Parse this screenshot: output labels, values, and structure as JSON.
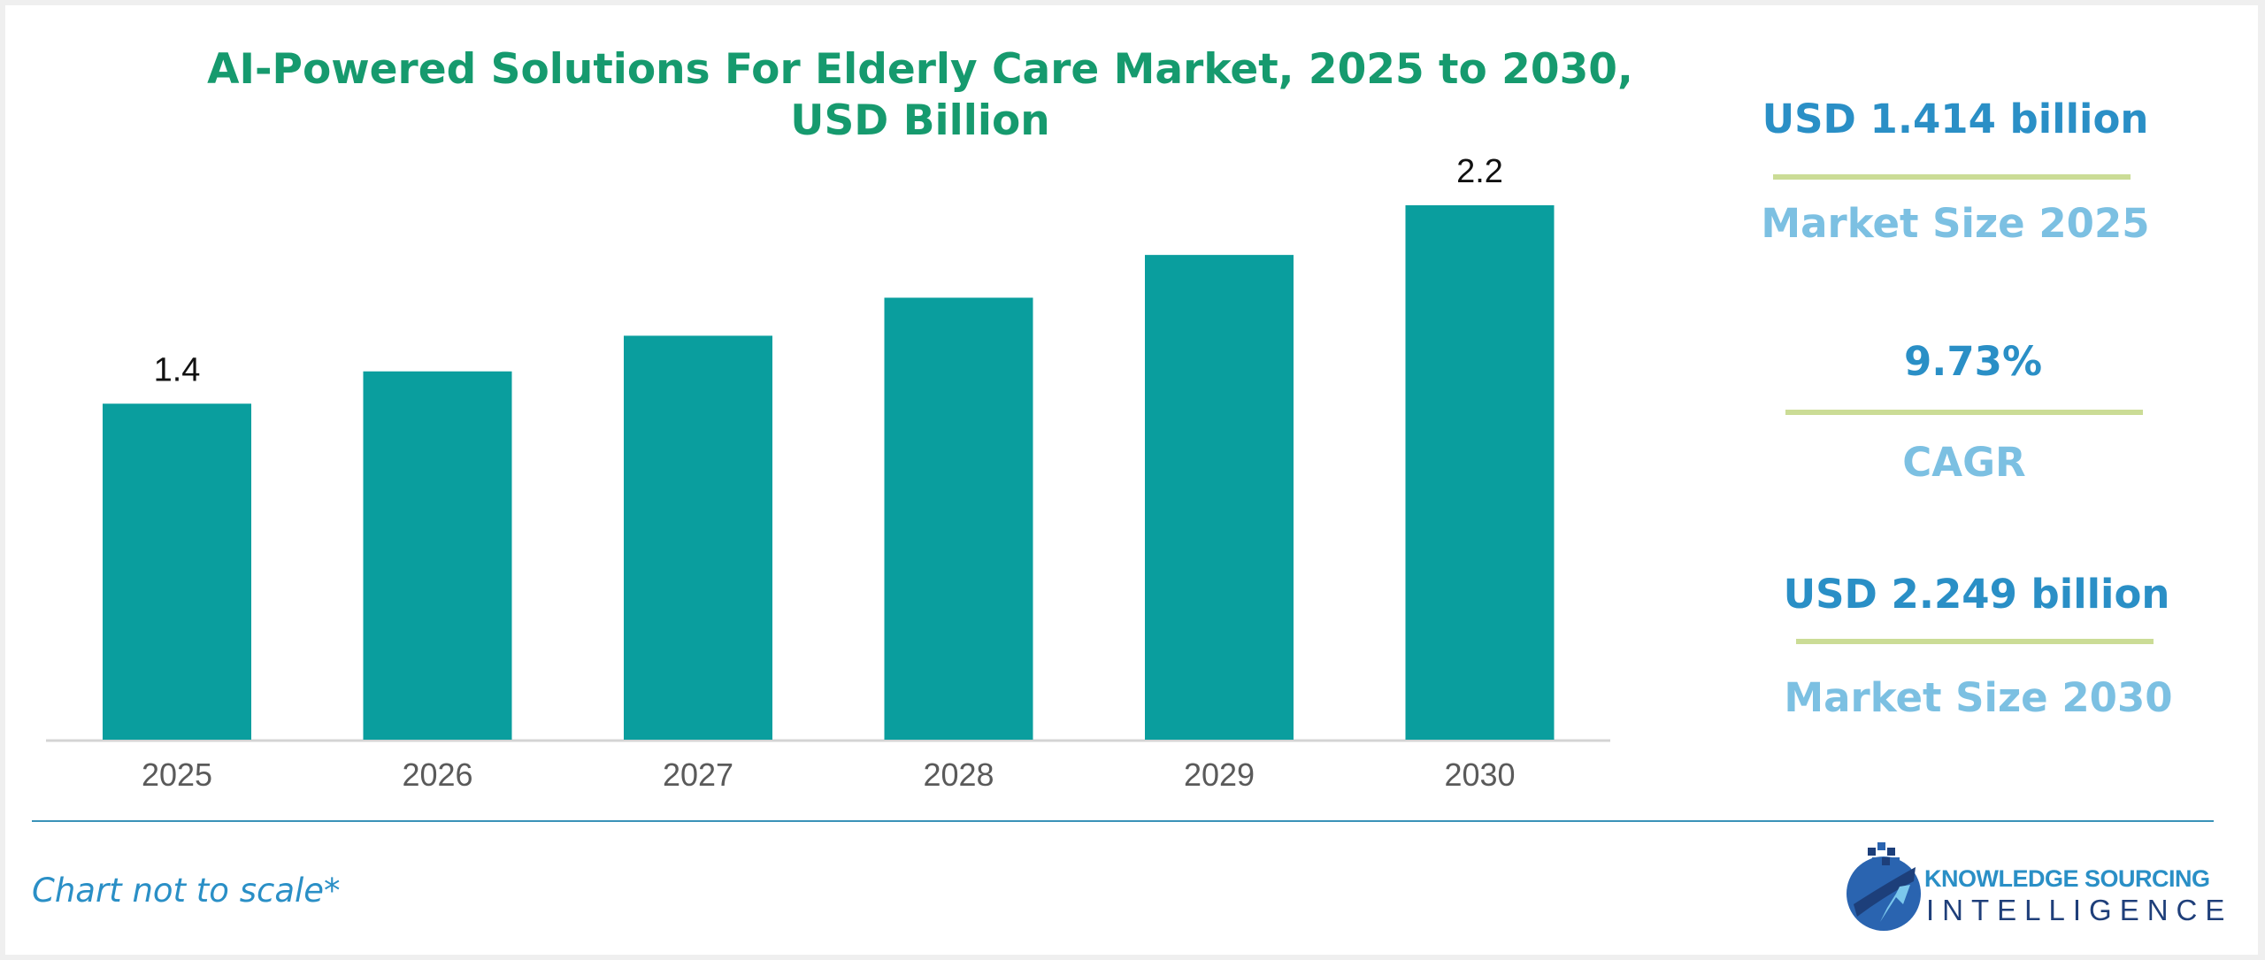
{
  "chart_data": {
    "type": "bar",
    "title": "AI-Powered Solutions For Elderly Care Market, 2025 to 2030, USD Billion",
    "categories": [
      "2025",
      "2026",
      "2027",
      "2028",
      "2029",
      "2030"
    ],
    "values": [
      1.414,
      1.55,
      1.7,
      1.86,
      2.04,
      2.249
    ],
    "data_labels": [
      "1.4",
      "",
      "",
      "",
      "",
      "2.2"
    ],
    "xlabel": "",
    "ylabel": "",
    "bar_color": "#0a9e9e",
    "grid": false
  },
  "title_lines": [
    "AI-Powered Solutions For Elderly Care Market, 2025 to 2030,",
    "USD Billion"
  ],
  "kpis": [
    {
      "value": "USD 1.414 billion",
      "label": "Market Size 2025"
    },
    {
      "value": "9.73%",
      "label": "CAGR"
    },
    {
      "value": "USD 2.249 billion",
      "label": "Market Size 2030"
    }
  ],
  "footnote": "Chart not to scale*",
  "logo": {
    "line1": "KNOWLEDGE SOURCING",
    "line2": "INTELLIGENCE"
  },
  "colors": {
    "title": "#169a6e",
    "kpi_value": "#2a8fc6",
    "kpi_label": "#7cc0e2",
    "divider": "#cbdc96"
  }
}
